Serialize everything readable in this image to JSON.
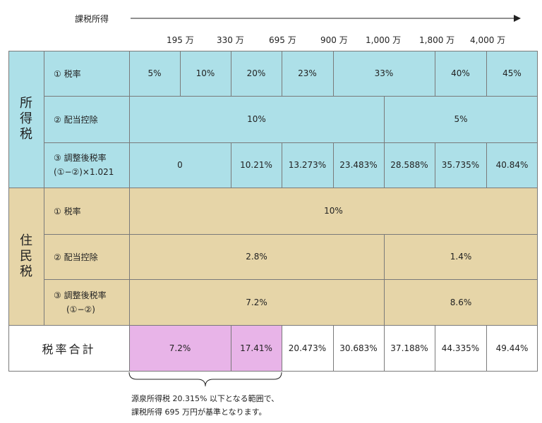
{
  "axis": {
    "label": "課税所得",
    "ticks": [
      "195 万",
      "330 万",
      "695 万",
      "900 万",
      "1,000 万",
      "1,800 万",
      "4,000 万"
    ]
  },
  "income_tax": {
    "section": [
      "所",
      "得",
      "税"
    ],
    "rows": {
      "rate": {
        "label": "① 税率",
        "values": [
          "5%",
          "10%",
          "20%",
          "23%",
          "33%",
          "40%",
          "45%"
        ]
      },
      "dividend": {
        "label": "② 配当控除",
        "values": [
          "10%",
          "5%"
        ]
      },
      "adjusted": {
        "label1": "③ 調整後税率",
        "label2": "(①−②)×1.021",
        "values": [
          "0",
          "10.21%",
          "13.273%",
          "23.483%",
          "28.588%",
          "35.735%",
          "40.84%"
        ]
      }
    }
  },
  "resident_tax": {
    "section": [
      "住",
      "民",
      "税"
    ],
    "rows": {
      "rate": {
        "label": "① 税率",
        "value": "10%"
      },
      "dividend": {
        "label": "② 配当控除",
        "values": [
          "2.8%",
          "1.4%"
        ]
      },
      "adjusted": {
        "label1": "③ 調整後税率",
        "label2": "(①−②)",
        "values": [
          "7.2%",
          "8.6%"
        ]
      }
    }
  },
  "total": {
    "label": "税率合計",
    "values": [
      "7.2%",
      "17.41%",
      "20.473%",
      "30.683%",
      "37.188%",
      "44.335%",
      "49.44%"
    ]
  },
  "note": {
    "line1": "源泉所得税 20.315% 以下となる範囲で、",
    "line2": "課税所得 695 万円が基準となります。"
  },
  "colors": {
    "income_bg": "#ade0e8",
    "resident_bg": "#e6d5a8",
    "highlight_bg": "#e8b4e8",
    "grid": "#7a7a7a"
  }
}
